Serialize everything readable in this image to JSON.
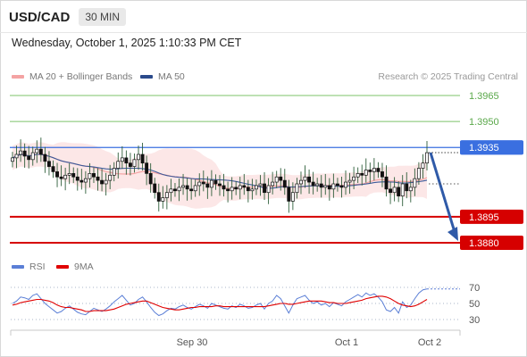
{
  "header": {
    "pair": "USD/CAD",
    "timeframe": "30 MIN"
  },
  "datetime": "Wednesday, October 1, 2025 1:10:33 PM CET",
  "legend": {
    "ma20": {
      "label": "MA 20 + Bollinger Bands",
      "color": "#f4a3a3"
    },
    "ma50": {
      "label": "MA 50",
      "color": "#2b4a8b"
    },
    "rsi": {
      "label": "RSI",
      "color": "#5b7fd6"
    },
    "rsi9": {
      "label": "9MA",
      "color": "#e00000"
    }
  },
  "credit": "Research © 2025 Trading Central",
  "chart_data": {
    "type": "candlestick",
    "x_ticks": [
      "Sep 30",
      "Oct 1",
      "Oct 2"
    ],
    "price_levels": [
      {
        "value": 1.3965,
        "label": "1.3965",
        "kind": "resistance",
        "color": "#7cc36a"
      },
      {
        "value": 1.395,
        "label": "1.3950",
        "kind": "resistance",
        "color": "#7cc36a"
      },
      {
        "value": 1.3935,
        "label": "1.3935",
        "kind": "pivot",
        "color": "#3a6fe0"
      },
      {
        "value": 1.3895,
        "label": "1.3895",
        "kind": "support",
        "color": "#d60000"
      },
      {
        "value": 1.388,
        "label": "1.3880",
        "kind": "support",
        "color": "#d60000"
      }
    ],
    "last_price": "1.3932",
    "forecast": {
      "from": 1.3932,
      "to": 1.388,
      "direction": "down"
    },
    "closes": [
      1.3929,
      1.3931,
      1.3933,
      1.393,
      1.3928,
      1.3932,
      1.3934,
      1.3931,
      1.3927,
      1.3924,
      1.3921,
      1.3918,
      1.3917,
      1.3919,
      1.392,
      1.3918,
      1.3916,
      1.3915,
      1.3917,
      1.392,
      1.3918,
      1.3916,
      1.3914,
      1.3916,
      1.3919,
      1.3923,
      1.3927,
      1.3929,
      1.3926,
      1.3924,
      1.3928,
      1.3931,
      1.3926,
      1.392,
      1.3914,
      1.3909,
      1.3904,
      1.3906,
      1.3909,
      1.3911,
      1.391,
      1.3912,
      1.3913,
      1.3911,
      1.391,
      1.3913,
      1.3915,
      1.3914,
      1.3912,
      1.3916,
      1.3914,
      1.3913,
      1.3911,
      1.391,
      1.3912,
      1.3911,
      1.3913,
      1.3912,
      1.391,
      1.3911,
      1.3913,
      1.3914,
      1.3909,
      1.3913,
      1.3915,
      1.3918,
      1.3916,
      1.3912,
      1.3904,
      1.3909,
      1.3914,
      1.3916,
      1.3918,
      1.3915,
      1.3913,
      1.3914,
      1.3912,
      1.3913,
      1.3911,
      1.3914,
      1.3913,
      1.3912,
      1.3915,
      1.3916,
      1.3918,
      1.392,
      1.3919,
      1.3922,
      1.3921,
      1.3923,
      1.3921,
      1.3918,
      1.3911,
      1.3909,
      1.3912,
      1.3907,
      1.3914,
      1.391,
      1.3912,
      1.3917,
      1.3923,
      1.3926,
      1.3932
    ],
    "rsi": {
      "ticks": [
        70,
        50,
        30
      ],
      "rsi_values": [
        50,
        53,
        58,
        57,
        55,
        60,
        62,
        56,
        50,
        46,
        42,
        38,
        40,
        44,
        47,
        43,
        39,
        37,
        36,
        40,
        44,
        42,
        40,
        43,
        47,
        52,
        56,
        60,
        54,
        48,
        50,
        55,
        58,
        52,
        45,
        39,
        35,
        37,
        41,
        44,
        43,
        46,
        48,
        45,
        43,
        46,
        49,
        47,
        44,
        50,
        48,
        46,
        44,
        43,
        47,
        45,
        49,
        47,
        44,
        45,
        48,
        50,
        43,
        50,
        53,
        60,
        56,
        47,
        38,
        48,
        56,
        58,
        60,
        54,
        50,
        52,
        48,
        50,
        46,
        51,
        49,
        47,
        52,
        55,
        58,
        61,
        58,
        63,
        60,
        62,
        58,
        52,
        42,
        40,
        45,
        38,
        52,
        45,
        48,
        56,
        63,
        67,
        68
      ],
      "ma9_values": [
        48,
        49,
        51,
        52,
        53,
        54,
        55,
        55,
        54,
        53,
        51,
        48,
        46,
        45,
        45,
        44,
        43,
        42,
        40,
        40,
        41,
        41,
        41,
        41,
        42,
        43,
        45,
        47,
        49,
        50,
        51,
        52,
        53,
        53,
        51,
        49,
        47,
        45,
        44,
        43,
        42,
        42,
        43,
        44,
        45,
        45,
        46,
        46,
        46,
        46,
        47,
        47,
        46,
        46,
        46,
        46,
        46,
        46,
        46,
        46,
        46,
        46,
        46,
        47,
        48,
        49,
        50,
        50,
        49,
        49,
        50,
        51,
        52,
        53,
        53,
        53,
        53,
        52,
        51,
        51,
        50,
        50,
        50,
        51,
        52,
        53,
        54,
        56,
        57,
        58,
        59,
        59,
        58,
        56,
        53,
        50,
        48,
        47,
        46,
        47,
        49,
        52,
        55
      ]
    }
  }
}
